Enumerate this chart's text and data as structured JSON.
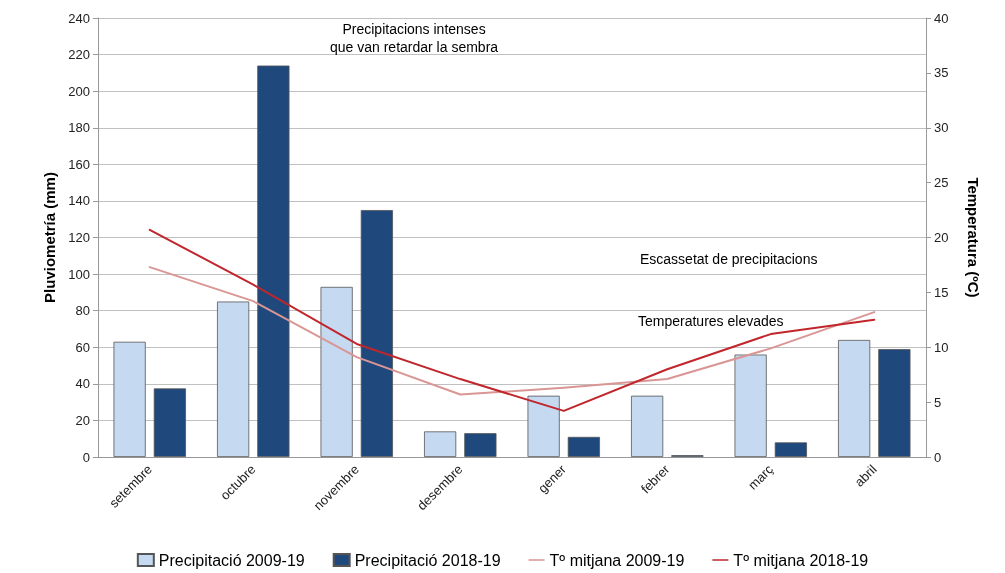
{
  "chart_data": {
    "type": "bar",
    "categories": [
      "setembre",
      "octubre",
      "novembre",
      "desembre",
      "gener",
      "febrer",
      "març",
      "abril"
    ],
    "series": [
      {
        "name": "Precipitació 2009-19",
        "color": "#c5d9f1",
        "values": [
          63,
          85,
          93,
          14,
          33.5,
          33.5,
          56,
          64
        ]
      },
      {
        "name": "Precipitació 2018-19",
        "color": "#1f497d",
        "values": [
          37.5,
          214,
          135,
          13,
          11,
          1,
          8,
          59
        ]
      },
      {
        "name": "Tº mitjana 2009-19",
        "type": "line",
        "axis": "y2",
        "color": "#d99694",
        "values": [
          17.3,
          14.2,
          9.1,
          5.7,
          6.3,
          7.1,
          9.9,
          13.2
        ]
      },
      {
        "name": "Tº mitjana 2018-19",
        "type": "line",
        "axis": "y2",
        "color": "#c0262b",
        "values": [
          20.7,
          15.7,
          10.3,
          7.1,
          4.2,
          8.0,
          11.2,
          12.5
        ]
      }
    ],
    "ylabel": "Pluviometría (mm)",
    "y2label": "Temperatura (ºC)",
    "ylim": [
      0,
      240
    ],
    "yticks": [
      0,
      20,
      40,
      60,
      80,
      100,
      120,
      140,
      160,
      180,
      200,
      220,
      240
    ],
    "y2lim": [
      0,
      40
    ],
    "y2ticks": [
      0,
      5,
      10,
      15,
      20,
      25,
      30,
      35,
      40
    ],
    "annotations": [
      "Precipitacions intenses\nque van retardar la sembra",
      "Escassetat de precipitacions",
      "Temperatures elevades"
    ],
    "grid": "y",
    "legend": "bottom",
    "marker": "none",
    "line_style": "solid"
  }
}
